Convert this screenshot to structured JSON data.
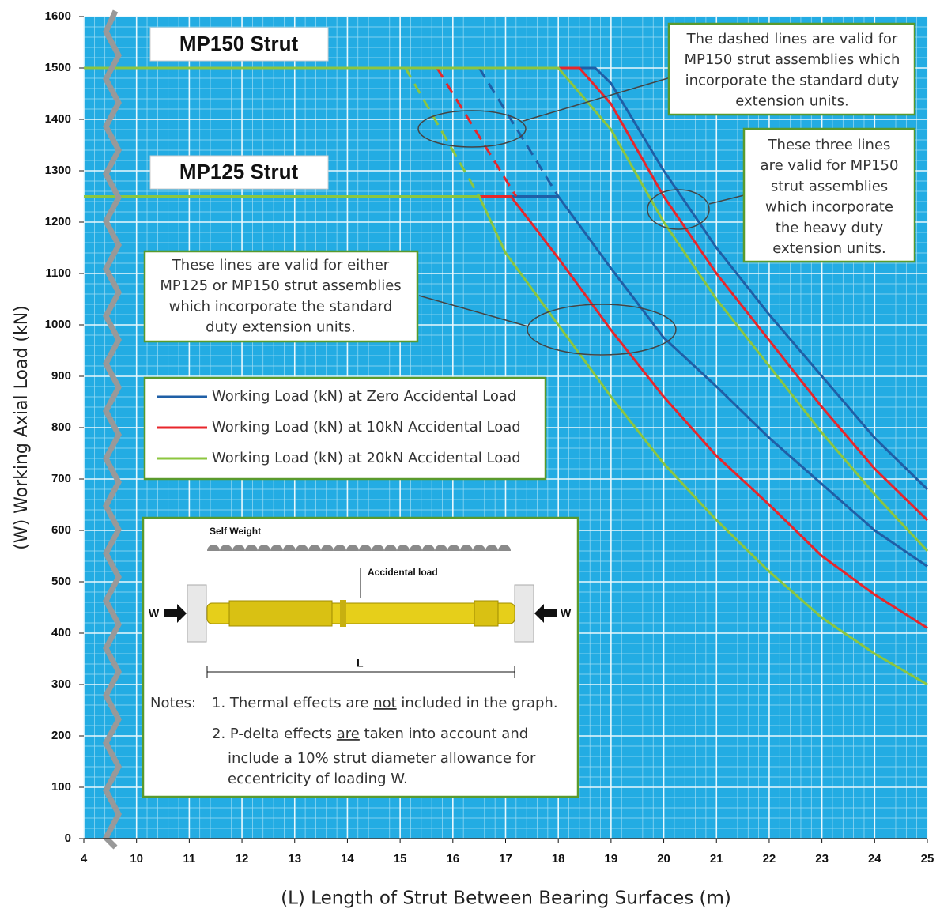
{
  "chart_data": {
    "type": "line",
    "xlabel": "(L) Length of Strut Between Bearing Surfaces (m)",
    "ylabel": "(W) Working Axial Load (kN)",
    "xlim": [
      4,
      25
    ],
    "xticks": [
      4,
      10,
      11,
      12,
      13,
      14,
      15,
      16,
      17,
      18,
      19,
      20,
      21,
      22,
      23,
      24,
      25
    ],
    "axis_break": true,
    "ylim": [
      0,
      1600
    ],
    "yticks": [
      0,
      100,
      200,
      300,
      400,
      500,
      600,
      700,
      800,
      900,
      1000,
      1100,
      1200,
      1300,
      1400,
      1500,
      1600
    ],
    "grid": true,
    "series": [
      {
        "name": "Working Load (kN) at Zero Accidental Load",
        "color": "#1f5fa6",
        "lines": [
          {
            "x": [
              4,
              18.7,
              19,
              20,
              21,
              22,
              23,
              24,
              25
            ],
            "values": [
              1500,
              1500,
              1470,
              1300,
              1150,
              1020,
              900,
              780,
              680
            ]
          },
          {
            "x": [
              4,
              18,
              19,
              20,
              21,
              22,
              23,
              24,
              25
            ],
            "values": [
              1250,
              1250,
              1110,
              975,
              880,
              780,
              690,
              600,
              530
            ]
          },
          {
            "x": [
              16.5,
              18
            ],
            "values": [
              1500,
              1250
            ],
            "dashed": true
          }
        ]
      },
      {
        "name": "Working Load (kN) at 10kN Accidental Load",
        "color": "#e8262b",
        "lines": [
          {
            "x": [
              4,
              18.4,
              19,
              20,
              21,
              22,
              23,
              24,
              25
            ],
            "values": [
              1500,
              1500,
              1430,
              1250,
              1100,
              970,
              840,
              720,
              620
            ]
          },
          {
            "x": [
              4,
              17.1,
              18,
              19,
              20,
              21,
              22,
              23,
              24,
              25
            ],
            "values": [
              1250,
              1250,
              1130,
              990,
              860,
              745,
              650,
              550,
              475,
              410
            ]
          },
          {
            "x": [
              15.7,
              17.2
            ],
            "values": [
              1500,
              1250
            ],
            "dashed": true
          }
        ]
      },
      {
        "name": "Working Load (kN) at 20kN Accidental Load",
        "color": "#8cc63f",
        "lines": [
          {
            "x": [
              4,
              18,
              19,
              20,
              21,
              22,
              23,
              24,
              25
            ],
            "values": [
              1500,
              1500,
              1380,
              1200,
              1050,
              920,
              790,
              670,
              560
            ]
          },
          {
            "x": [
              4,
              16.5,
              17,
              18,
              19,
              20,
              21,
              22,
              23,
              24,
              25
            ],
            "values": [
              1250,
              1250,
              1140,
              1000,
              860,
              730,
              620,
              520,
              430,
              360,
              300
            ]
          },
          {
            "x": [
              15.1,
              16.5
            ],
            "values": [
              1500,
              1250
            ],
            "dashed": true
          }
        ]
      }
    ],
    "labels": [
      "MP150 Strut",
      "MP125 Strut"
    ],
    "callouts": [
      [
        "The dashed lines are valid for",
        "MP150 strut assemblies which",
        "incorporate the standard duty",
        "extension units."
      ],
      [
        "These  three lines",
        "are valid for MP150",
        "strut assemblies",
        "which incorporate",
        "the heavy duty",
        "extension units."
      ],
      [
        "These lines are valid for either",
        "MP125 or MP150 strut assemblies",
        "which incorporate the standard",
        "duty extension units."
      ]
    ],
    "diagram": {
      "self_weight": "Self Weight",
      "accidental_load": "Accidental load",
      "load_left": "W",
      "load_right": "W",
      "length": "L"
    },
    "notes": {
      "heading": "Notes:",
      "note1": [
        "1. Thermal effects are ",
        "not",
        " included in the graph."
      ],
      "note2": [
        "2. P-delta effects ",
        "are",
        " taken into account and"
      ],
      "note2_cont": [
        "include a 10% strut diameter allowance for",
        "eccentricity of loading W."
      ]
    }
  }
}
